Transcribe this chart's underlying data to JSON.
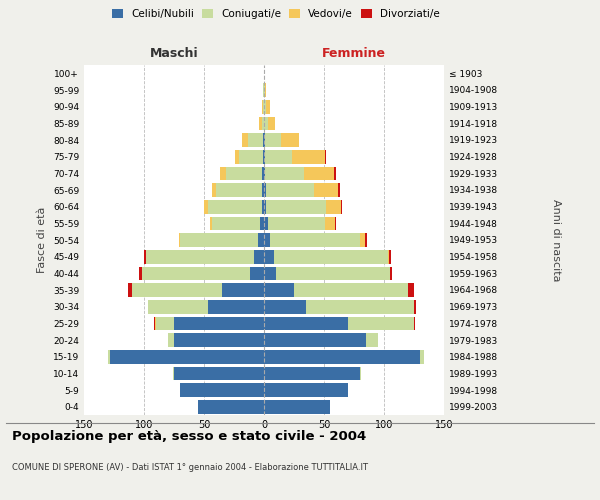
{
  "age_groups": [
    "0-4",
    "5-9",
    "10-14",
    "15-19",
    "20-24",
    "25-29",
    "30-34",
    "35-39",
    "40-44",
    "45-49",
    "50-54",
    "55-59",
    "60-64",
    "65-69",
    "70-74",
    "75-79",
    "80-84",
    "85-89",
    "90-94",
    "95-99",
    "100+"
  ],
  "birth_years": [
    "1999-2003",
    "1994-1998",
    "1989-1993",
    "1984-1988",
    "1979-1983",
    "1974-1978",
    "1969-1973",
    "1964-1968",
    "1959-1963",
    "1954-1958",
    "1949-1953",
    "1944-1948",
    "1939-1943",
    "1934-1938",
    "1929-1933",
    "1924-1928",
    "1919-1923",
    "1914-1918",
    "1909-1913",
    "1904-1908",
    "≤ 1903"
  ],
  "males": {
    "celibe": [
      55,
      70,
      75,
      128,
      75,
      75,
      47,
      35,
      12,
      8,
      5,
      3,
      2,
      2,
      2,
      1,
      1,
      0,
      0,
      0,
      0
    ],
    "coniugato": [
      0,
      0,
      1,
      2,
      5,
      15,
      50,
      75,
      90,
      90,
      65,
      40,
      45,
      38,
      30,
      20,
      12,
      2,
      1,
      1,
      0
    ],
    "vedovo": [
      0,
      0,
      0,
      0,
      0,
      1,
      0,
      0,
      0,
      0,
      1,
      2,
      3,
      3,
      5,
      3,
      5,
      2,
      1,
      0,
      0
    ],
    "divorziato": [
      0,
      0,
      0,
      0,
      0,
      1,
      0,
      3,
      2,
      2,
      0,
      0,
      0,
      0,
      0,
      0,
      0,
      0,
      0,
      0,
      0
    ]
  },
  "females": {
    "nubile": [
      55,
      70,
      80,
      130,
      85,
      70,
      35,
      25,
      10,
      8,
      5,
      3,
      2,
      2,
      1,
      1,
      1,
      0,
      0,
      0,
      0
    ],
    "coniugata": [
      0,
      0,
      1,
      3,
      10,
      55,
      90,
      95,
      95,
      95,
      75,
      48,
      50,
      40,
      32,
      22,
      13,
      3,
      2,
      1,
      0
    ],
    "vedova": [
      0,
      0,
      0,
      0,
      0,
      0,
      0,
      0,
      0,
      1,
      4,
      8,
      12,
      20,
      25,
      28,
      15,
      6,
      3,
      1,
      0
    ],
    "divorziata": [
      0,
      0,
      0,
      0,
      0,
      1,
      2,
      5,
      2,
      2,
      2,
      1,
      1,
      1,
      2,
      1,
      0,
      0,
      0,
      0,
      0
    ]
  },
  "colors": {
    "celibe_nubile": "#3A6EA5",
    "coniugato": "#C8DC9E",
    "vedovo": "#F5C75A",
    "divorziato": "#CC1111"
  },
  "xlim": 150,
  "title": "Popolazione per età, sesso e stato civile - 2004",
  "subtitle": "COMUNE DI SPERONE (AV) - Dati ISTAT 1° gennaio 2004 - Elaborazione TUTTITALIA.IT",
  "xlabel_left": "Maschi",
  "xlabel_right": "Femmine",
  "ylabel_left": "Fasce di età",
  "ylabel_right": "Anni di nascita",
  "bg_color": "#f0f0eb",
  "plot_bg": "#ffffff"
}
